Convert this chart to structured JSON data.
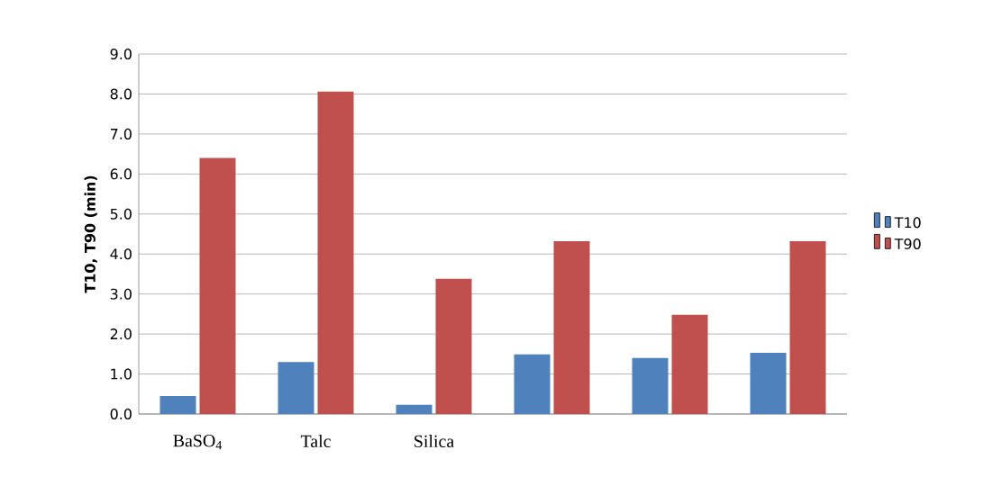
{
  "chart_data": {
    "type": "bar",
    "ylabel": "T10, T90 (min)",
    "categories": [
      "BaSO$_{4}$",
      "Talc",
      "Silica",
      null,
      null,
      null
    ],
    "series": [
      {
        "name": "T10",
        "color": "#4f81bd",
        "values": [
          0.45,
          1.3,
          0.23,
          1.49,
          1.4,
          1.53
        ]
      },
      {
        "name": "T90",
        "color": "#c0504d",
        "values": [
          6.4,
          8.06,
          3.38,
          4.32,
          2.48,
          4.32
        ]
      }
    ],
    "ylim": [
      0,
      9
    ],
    "yticks": [
      {
        "value": 0,
        "label": "0.0"
      },
      {
        "value": 1,
        "label": "1.0"
      },
      {
        "value": 2,
        "label": "2.0"
      },
      {
        "value": 3,
        "label": "3.0"
      },
      {
        "value": 4,
        "label": "4.0"
      },
      {
        "value": 5,
        "label": "5.0"
      },
      {
        "value": 6,
        "label": "6.0"
      },
      {
        "value": 7,
        "label": "7.0"
      },
      {
        "value": 8,
        "label": "8.0"
      },
      {
        "value": 9,
        "label": "9.0"
      }
    ],
    "grid": "y",
    "legend": "right"
  }
}
